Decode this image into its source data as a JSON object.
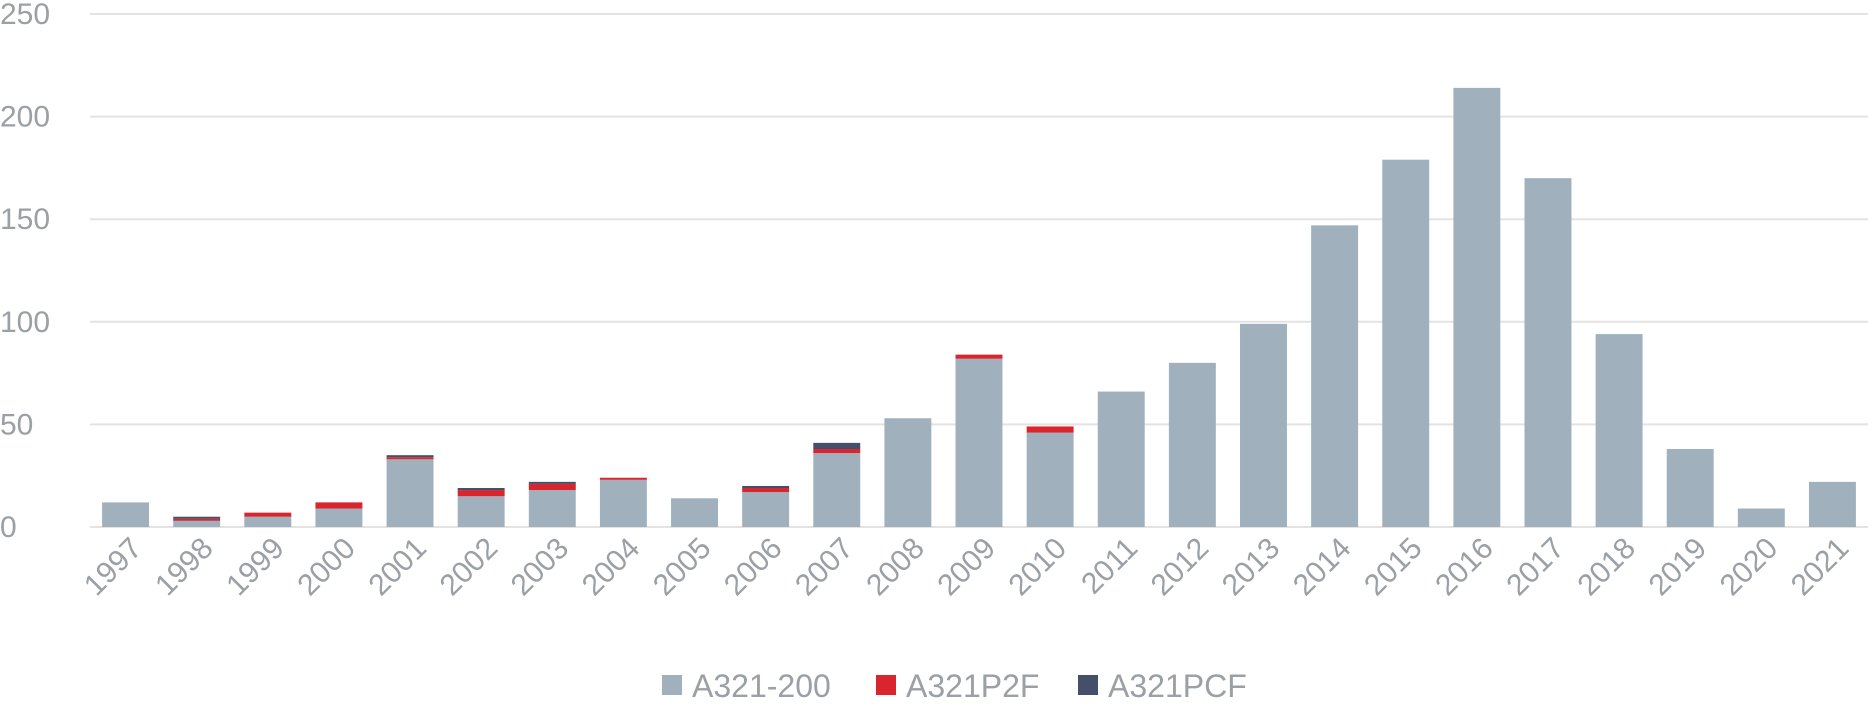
{
  "chart_data": {
    "type": "bar",
    "stacked": true,
    "title": "",
    "xlabel": "",
    "ylabel": "",
    "ylim": [
      0,
      250
    ],
    "yticks": [
      0,
      50,
      100,
      150,
      200,
      250
    ],
    "grid": true,
    "legend_position": "bottom",
    "categories": [
      "1997",
      "1998",
      "1999",
      "2000",
      "2001",
      "2002",
      "2003",
      "2004",
      "2005",
      "2006",
      "2007",
      "2008",
      "2009",
      "2010",
      "2011",
      "2012",
      "2013",
      "2014",
      "2015",
      "2016",
      "2017",
      "2018",
      "2019",
      "2020",
      "2021"
    ],
    "series": [
      {
        "name": "A321-200",
        "color": "#a0b1bd",
        "values": [
          12,
          3,
          5,
          9,
          33,
          15,
          18,
          23,
          14,
          17,
          36,
          53,
          82,
          46,
          66,
          80,
          99,
          147,
          179,
          214,
          170,
          94,
          38,
          9,
          22
        ]
      },
      {
        "name": "A321P2F",
        "color": "#d9262e",
        "values": [
          0,
          1,
          2,
          3,
          1,
          3,
          3,
          1,
          0,
          2,
          2,
          0,
          2,
          3,
          0,
          0,
          0,
          0,
          0,
          0,
          0,
          0,
          0,
          0,
          0
        ]
      },
      {
        "name": "A321PCF",
        "color": "#44506a",
        "values": [
          0,
          1,
          0,
          0,
          1,
          1,
          1,
          0,
          0,
          1,
          3,
          0,
          0,
          0,
          0,
          0,
          0,
          0,
          0,
          0,
          0,
          0,
          0,
          0,
          0
        ]
      }
    ]
  }
}
